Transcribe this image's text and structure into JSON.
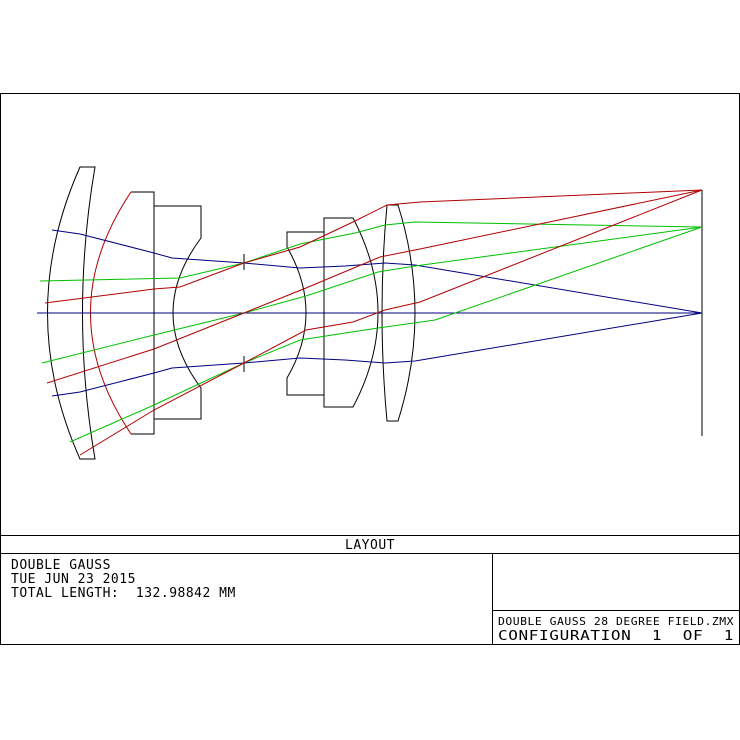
{
  "plot": {
    "title": "LAYOUT",
    "colors": {
      "lens": "#000000",
      "axis_ray": "#000080",
      "field1": "#00c000",
      "field2": "#b00000",
      "frame": "#000000"
    }
  },
  "info": {
    "lines": [
      "DOUBLE GAUSS",
      "TUE JUN 23 2015",
      "TOTAL LENGTH:  132.98842 MM"
    ],
    "file": "DOUBLE GAUSS 28 DEGREE FIELD.ZMX",
    "configuration": "CONFIGURATION  1  OF  1"
  }
}
